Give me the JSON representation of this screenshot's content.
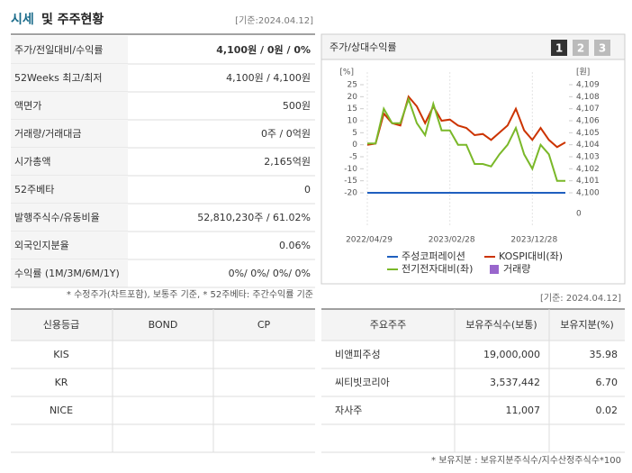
{
  "header": {
    "title_a": "시세",
    "title_b": "및 주주현황",
    "date": "[기준:2024.04.12]"
  },
  "summary": {
    "rows": [
      [
        "주가/전일대비/수익률",
        "4,100원 / 0원 / 0%"
      ],
      [
        "52Weeks 최고/최저",
        "4,100원 / 4,100원"
      ],
      [
        "액면가",
        "500원"
      ],
      [
        "거래량/거래대금",
        "0주 / 0억원"
      ],
      [
        "시가총액",
        "2,165억원"
      ],
      [
        "52주베타",
        "0"
      ],
      [
        "발행주식수/유동비율",
        "52,810,230주 / 61.02%"
      ],
      [
        "외국인지분율",
        "0.06%"
      ],
      [
        "수익률 (1M/3M/6M/1Y)",
        "0%/ 0%/ 0%/ 0%"
      ]
    ],
    "note": "* 수정주가(차트포함), 보통주 기준, * 52주베타: 주간수익률 기준"
  },
  "chart_data": {
    "type": "line",
    "title": "주가/상대수익률",
    "tabs": [
      "1",
      "2",
      "3"
    ],
    "y_unit": "[%]",
    "y2_unit": "[원]",
    "x": [
      "2022/04/29",
      null,
      null,
      null,
      null,
      null,
      null,
      null,
      null,
      null,
      "2023/02/28",
      null,
      null,
      null,
      null,
      null,
      null,
      null,
      null,
      null,
      "2023/12/28",
      null,
      null,
      null,
      null
    ],
    "ylim": [
      -20,
      25
    ],
    "yticks": [
      25,
      20,
      15,
      10,
      5,
      0,
      -5,
      -10,
      -15,
      -20
    ],
    "y2lim": [
      4100,
      4109
    ],
    "y2ticks": [
      {
        "value": 4109,
        "label": "4,109"
      },
      {
        "value": 4108,
        "label": "4,108"
      },
      {
        "value": 4107,
        "label": "4,107"
      },
      {
        "value": 4106,
        "label": "4,106"
      },
      {
        "value": 4105,
        "label": "4,105"
      },
      {
        "value": 4104,
        "label": "4,104"
      },
      {
        "value": 4103,
        "label": "4,103"
      },
      {
        "value": 4102,
        "label": "4,102"
      },
      {
        "value": 4101,
        "label": "4,101"
      },
      {
        "value": 4100,
        "label": "4,100"
      }
    ],
    "volume_ticks": [
      0
    ],
    "series": [
      {
        "name": "주성코퍼레이션",
        "color": "#1f5fbf",
        "axis": "y2",
        "values": [
          4100,
          4100,
          4100,
          4100,
          4100,
          4100,
          4100,
          4100,
          4100,
          4100,
          4100,
          4100,
          4100,
          4100,
          4100,
          4100,
          4100,
          4100,
          4100,
          4100,
          4100,
          4100,
          4100,
          4100,
          4100
        ]
      },
      {
        "name": "KOSPI대비(좌)",
        "color": "#cc3300",
        "values": [
          0,
          0.5,
          13,
          9,
          8,
          20,
          16,
          9,
          16,
          10,
          10.5,
          8,
          7,
          4,
          4.5,
          2,
          5,
          8,
          15,
          6,
          2,
          7,
          2,
          -1,
          1
        ]
      },
      {
        "name": "전기전자대비(좌)",
        "color": "#7ab829",
        "values": [
          0.5,
          0.5,
          15,
          9,
          9,
          19,
          9,
          4,
          17,
          6,
          6,
          0,
          0,
          -8,
          -8,
          -9,
          -4,
          0,
          7,
          -4,
          -10,
          0,
          -4,
          -15,
          -15
        ]
      }
    ],
    "volume": {
      "name": "거래량",
      "color": "#9966cc"
    }
  },
  "credit": {
    "headers": [
      "신용등급",
      "BOND",
      "CP"
    ],
    "rows": [
      [
        "KIS"
      ],
      [
        "KR"
      ],
      [
        "NICE"
      ]
    ]
  },
  "holders": {
    "date": "[기준: 2024.04.12]",
    "headers": [
      "주요주주",
      "보유주식수(보통)",
      "보유지분(%)"
    ],
    "rows": [
      [
        "비앤피주성",
        "19,000,000",
        "35.98"
      ],
      [
        "씨티빗코리아",
        "3,537,442",
        "6.70"
      ],
      [
        "자사주",
        "11,007",
        "0.02"
      ]
    ],
    "note": "* 보유지분 : 보유지분주식수/지수산정주식수*100"
  }
}
